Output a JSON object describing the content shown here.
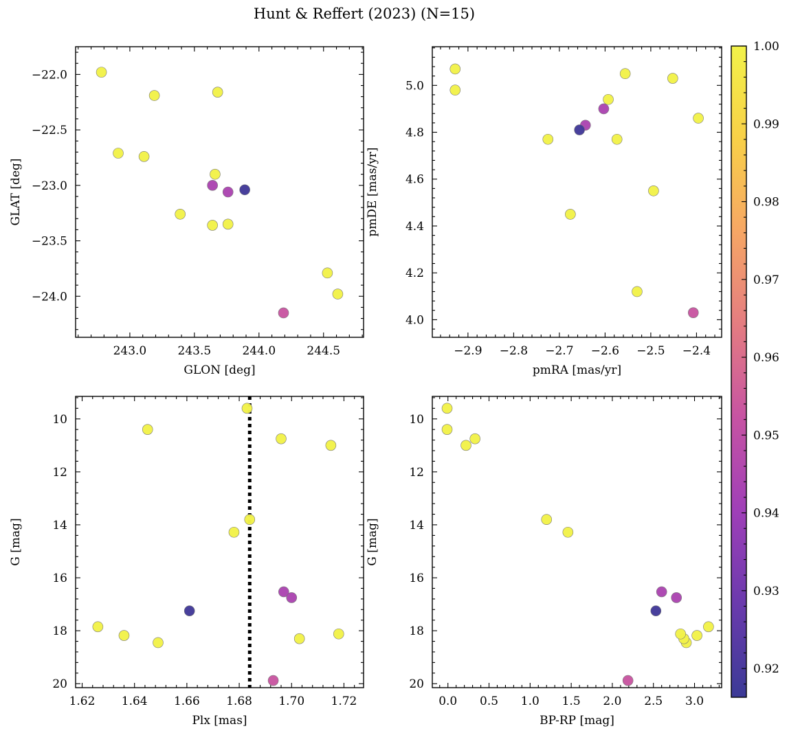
{
  "figure": {
    "title": "Hunt & Reffert (2023) (N=15)"
  },
  "colors": {
    "colormap": "plasma",
    "colormap_stops": [
      "#3b3a96",
      "#6a3aad",
      "#9f3fb8",
      "#c653a3",
      "#e47c81",
      "#f6a665",
      "#f8d048",
      "#f2f249"
    ],
    "reference_line": "#000000"
  },
  "colorbar": {
    "range": [
      0.9163,
      1.0
    ],
    "ticks": [
      0.92,
      0.93,
      0.94,
      0.95,
      0.96,
      0.97,
      0.98,
      0.99,
      1.0
    ],
    "tick_labels": [
      "0.92",
      "0.93",
      "0.94",
      "0.95",
      "0.96",
      "0.97",
      "0.98",
      "0.99",
      "1.00"
    ]
  },
  "chart_data": [
    {
      "type": "scatter",
      "id": "glon-glat",
      "xlabel": "GLON [deg]",
      "ylabel": "GLAT [deg]",
      "xlim": [
        242.58,
        244.81
      ],
      "ylim": [
        -24.37,
        -21.75
      ],
      "y_inverted": false,
      "xticks": [
        243.0,
        243.5,
        244.0,
        244.5
      ],
      "xtick_labels": [
        "243.0",
        "243.5",
        "244.0",
        "244.5"
      ],
      "yticks": [
        -22.0,
        -22.5,
        -23.0,
        -23.5,
        -24.0
      ],
      "ytick_labels": [
        "−22.0",
        "−22.5",
        "−23.0",
        "−23.5",
        "−24.0"
      ],
      "x": [
        242.78,
        243.19,
        243.68,
        242.91,
        243.11,
        243.66,
        243.64,
        243.76,
        243.89,
        243.39,
        243.64,
        243.76,
        244.53,
        244.61,
        244.19
      ],
      "y": [
        -21.98,
        -22.19,
        -22.16,
        -22.71,
        -22.74,
        -22.9,
        -23.0,
        -23.06,
        -23.04,
        -23.26,
        -23.36,
        -23.35,
        -23.79,
        -23.98,
        -24.15
      ]
    },
    {
      "type": "scatter",
      "id": "pmra-pmde",
      "xlabel": "pmRA [mas/yr]",
      "ylabel": "pmDE [mas/yr]",
      "xlim": [
        -2.978,
        -2.345
      ],
      "ylim": [
        3.925,
        5.165
      ],
      "y_inverted": false,
      "xticks": [
        -2.9,
        -2.8,
        -2.7,
        -2.6,
        -2.5,
        -2.4
      ],
      "xtick_labels": [
        "−2.9",
        "−2.8",
        "−2.7",
        "−2.6",
        "−2.5",
        "−2.4"
      ],
      "yticks": [
        4.0,
        4.2,
        4.4,
        4.6,
        4.8,
        5.0
      ],
      "ytick_labels": [
        "4.0",
        "4.2",
        "4.4",
        "4.6",
        "4.8",
        "5.0"
      ],
      "x": [
        -2.928,
        -2.928,
        -2.556,
        -2.452,
        -2.396,
        -2.593,
        -2.603,
        -2.643,
        -2.656,
        -2.574,
        -2.725,
        -2.494,
        -2.676,
        -2.53,
        -2.407
      ],
      "y": [
        5.07,
        4.98,
        5.05,
        5.03,
        4.86,
        4.94,
        4.9,
        4.83,
        4.81,
        4.77,
        4.77,
        4.55,
        4.45,
        4.12,
        4.03
      ]
    },
    {
      "type": "scatter",
      "id": "plx-g",
      "xlabel": "Plx [mas]",
      "ylabel": "G [mag]",
      "xlim": [
        1.6175,
        1.7275
      ],
      "ylim": [
        20.15,
        9.15
      ],
      "y_inverted": true,
      "xticks": [
        1.62,
        1.64,
        1.66,
        1.68,
        1.7,
        1.72
      ],
      "xtick_labels": [
        "1.62",
        "1.64",
        "1.66",
        "1.68",
        "1.70",
        "1.72"
      ],
      "yticks": [
        10,
        12,
        14,
        16,
        18,
        20
      ],
      "ytick_labels": [
        "10",
        "12",
        "14",
        "16",
        "18",
        "20"
      ],
      "vline": 1.684,
      "x": [
        1.683,
        1.645,
        1.696,
        1.715,
        1.684,
        1.678,
        1.697,
        1.7,
        1.661,
        1.626,
        1.636,
        1.649,
        1.703,
        1.718,
        1.693
      ],
      "y": [
        9.6,
        10.4,
        10.75,
        11.0,
        13.8,
        14.28,
        16.53,
        16.75,
        17.25,
        17.85,
        18.18,
        18.45,
        18.3,
        18.12,
        19.88
      ]
    },
    {
      "type": "scatter",
      "id": "bprp-g",
      "xlabel": "BP-RP [mag]",
      "ylabel": "G [mag]",
      "xlim": [
        -0.19,
        3.33
      ],
      "ylim": [
        20.15,
        9.15
      ],
      "y_inverted": true,
      "xticks": [
        0.0,
        0.5,
        1.0,
        1.5,
        2.0,
        2.5,
        3.0
      ],
      "xtick_labels": [
        "0.0",
        "0.5",
        "1.0",
        "1.5",
        "2.0",
        "2.5",
        "3.0"
      ],
      "yticks": [
        10,
        12,
        14,
        16,
        18,
        20
      ],
      "ytick_labels": [
        "10",
        "12",
        "14",
        "16",
        "18",
        "20"
      ],
      "x": [
        -0.01,
        -0.01,
        0.33,
        0.22,
        1.2,
        1.46,
        2.6,
        2.78,
        2.53,
        3.17,
        3.03,
        2.9,
        2.87,
        2.83,
        2.19
      ],
      "y": [
        9.6,
        10.4,
        10.75,
        11.0,
        13.8,
        14.28,
        16.53,
        16.75,
        17.25,
        17.85,
        18.18,
        18.45,
        18.3,
        18.12,
        19.88
      ]
    }
  ],
  "probability": [
    1.0,
    1.0,
    1.0,
    1.0,
    1.0,
    1.0,
    0.944,
    0.944,
    0.918,
    1.0,
    1.0,
    1.0,
    1.0,
    1.0,
    0.953
  ]
}
